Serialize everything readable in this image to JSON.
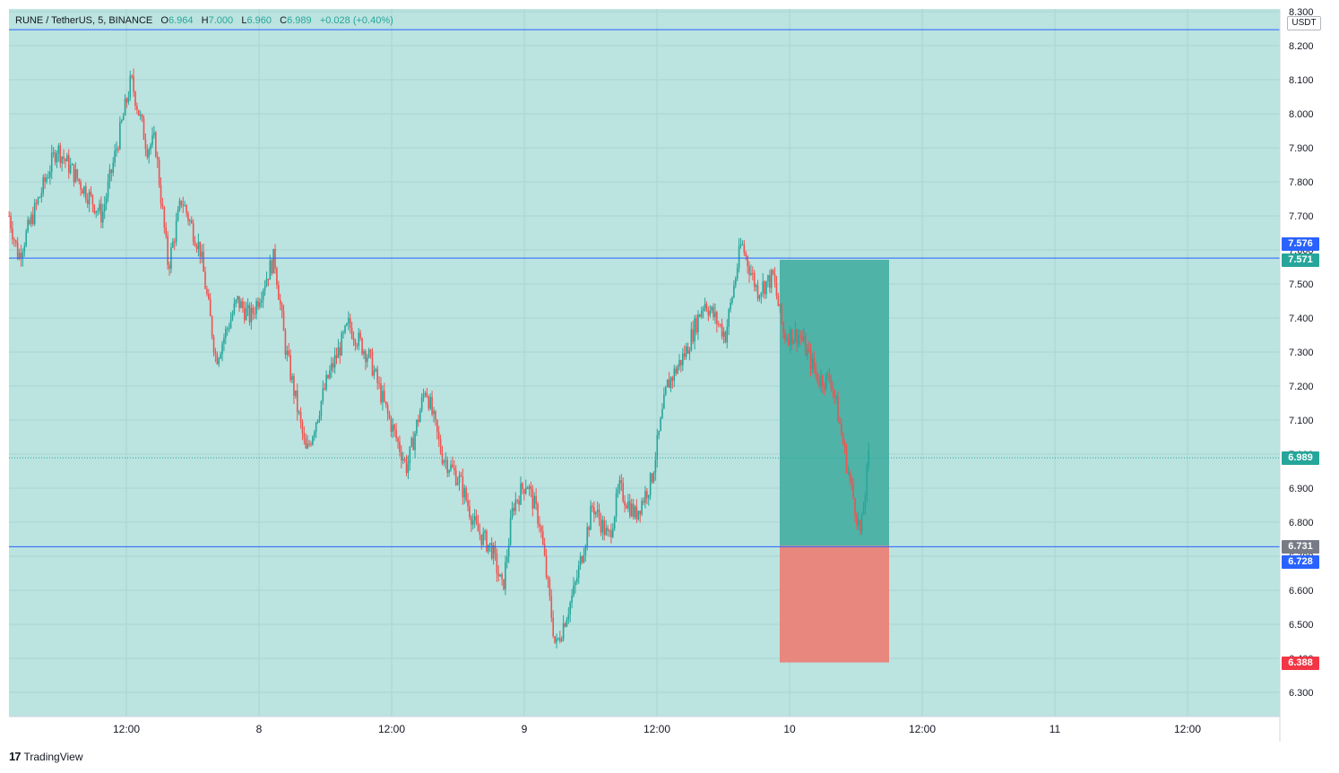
{
  "legend": {
    "symbol": "RUNE / TetherUS, 5, BINANCE",
    "o_label": "O",
    "o_value": "6.964",
    "h_label": "H",
    "h_value": "7.000",
    "l_label": "L",
    "l_value": "6.960",
    "c_label": "C",
    "c_value": "6.989",
    "change": "+0.028 (+0.40%)"
  },
  "currency": "USDT",
  "watermark": "TradingView",
  "colors": {
    "background": "#bbe3e0",
    "up": "#26a69a",
    "down": "#ef5350",
    "hline": "#2962ff",
    "profit_zone": "#4fb3a8",
    "loss_zone": "#e8877d"
  },
  "price_tags": [
    {
      "value": "7.576",
      "color": "#2962ff"
    },
    {
      "value": "7.571",
      "color": "#26a69a"
    },
    {
      "value": "6.989",
      "color": "#26a69a"
    },
    {
      "value": "6.731",
      "color": "#787b86"
    },
    {
      "value": "6.728",
      "color": "#2962ff"
    },
    {
      "value": "6.388",
      "color": "#f23645"
    }
  ],
  "chart_data": {
    "type": "candlestick",
    "title": "RUNE / TetherUS, 5, BINANCE",
    "y_ticks": [
      "8.300",
      "8.200",
      "8.100",
      "8.000",
      "7.900",
      "7.800",
      "7.700",
      "7.600",
      "7.500",
      "7.400",
      "7.300",
      "7.200",
      "7.100",
      "7.000",
      "6.900",
      "6.800",
      "6.700",
      "6.600",
      "6.500",
      "6.400",
      "6.300"
    ],
    "x_ticks": [
      "12:00",
      "8",
      "12:00",
      "9",
      "12:00",
      "10",
      "12:00",
      "11",
      "12:00"
    ],
    "ylim": [
      6.25,
      8.31
    ],
    "horizontal_lines": [
      8.247,
      7.576,
      6.728
    ],
    "last_price": 6.989,
    "long_position": {
      "entry": 6.731,
      "target": 7.571,
      "stop": 6.388
    },
    "price_path": [
      {
        "x": 0.0,
        "price": 7.7
      },
      {
        "x": 0.035,
        "price": 7.58
      },
      {
        "x": 0.18,
        "price": 7.9
      },
      {
        "x": 0.35,
        "price": 7.7
      },
      {
        "x": 0.46,
        "price": 8.1
      },
      {
        "x": 0.52,
        "price": 7.9
      },
      {
        "x": 0.55,
        "price": 7.92
      },
      {
        "x": 0.6,
        "price": 7.55
      },
      {
        "x": 0.65,
        "price": 7.75
      },
      {
        "x": 0.72,
        "price": 7.6
      },
      {
        "x": 0.78,
        "price": 7.28
      },
      {
        "x": 0.86,
        "price": 7.45
      },
      {
        "x": 0.91,
        "price": 7.4
      },
      {
        "x": 1.0,
        "price": 7.58
      },
      {
        "x": 1.04,
        "price": 7.32
      },
      {
        "x": 1.12,
        "price": 7.0
      },
      {
        "x": 1.2,
        "price": 7.22
      },
      {
        "x": 1.28,
        "price": 7.38
      },
      {
        "x": 1.36,
        "price": 7.28
      },
      {
        "x": 1.42,
        "price": 7.13
      },
      {
        "x": 1.5,
        "price": 6.96
      },
      {
        "x": 1.57,
        "price": 7.2
      },
      {
        "x": 1.63,
        "price": 7.0
      },
      {
        "x": 1.7,
        "price": 6.92
      },
      {
        "x": 1.76,
        "price": 6.78
      },
      {
        "x": 1.82,
        "price": 6.72
      },
      {
        "x": 1.86,
        "price": 6.6
      },
      {
        "x": 1.9,
        "price": 6.85
      },
      {
        "x": 1.95,
        "price": 6.92
      },
      {
        "x": 2.0,
        "price": 6.8
      },
      {
        "x": 2.06,
        "price": 6.43
      },
      {
        "x": 2.13,
        "price": 6.6
      },
      {
        "x": 2.2,
        "price": 6.85
      },
      {
        "x": 2.26,
        "price": 6.75
      },
      {
        "x": 2.3,
        "price": 6.9
      },
      {
        "x": 2.36,
        "price": 6.82
      },
      {
        "x": 2.42,
        "price": 6.92
      },
      {
        "x": 2.48,
        "price": 7.2
      },
      {
        "x": 2.55,
        "price": 7.3
      },
      {
        "x": 2.62,
        "price": 7.45
      },
      {
        "x": 2.7,
        "price": 7.35
      },
      {
        "x": 2.76,
        "price": 7.62
      },
      {
        "x": 2.82,
        "price": 7.48
      },
      {
        "x": 2.88,
        "price": 7.52
      },
      {
        "x": 2.92,
        "price": 7.35
      },
      {
        "x": 2.98,
        "price": 7.35
      },
      {
        "x": 3.05,
        "price": 7.22
      },
      {
        "x": 3.1,
        "price": 7.22
      },
      {
        "x": 3.16,
        "price": 6.96
      },
      {
        "x": 3.21,
        "price": 6.76
      },
      {
        "x": 3.24,
        "price": 6.99
      }
    ]
  }
}
